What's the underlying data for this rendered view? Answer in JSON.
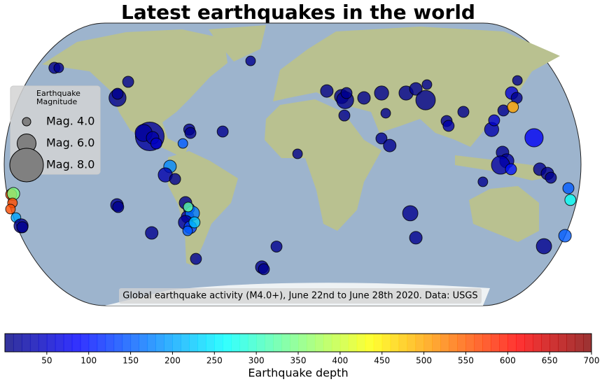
{
  "chart_data": {
    "type": "map",
    "title": "Latest earthquakes in the world",
    "annotation": "Global earthquake activity (M4.0+), June 22nd to June 28th 2020. Data: USGS",
    "series": [
      {
        "lon": [
          -154.0,
          -151.2,
          -105.3,
          -111.1,
          -111.3,
          -89.4,
          -93.3,
          -87.6,
          -85.2,
          -64.8,
          -64.0,
          -43.8,
          -68.6,
          -76.5,
          -79.5,
          -73.4,
          -67.2,
          -65.1,
          -66.2,
          -63.1,
          -67.7,
          -64.8,
          -62.0,
          -66.6,
          -65.6,
          -110.3,
          -109.6,
          -89.5,
          -62.4,
          -20.0,
          -18.7,
          -10.3,
          -27.3,
          21.8,
          31.1,
          33.3,
          34.3,
          45.3,
          56.6,
          72.2,
          78.6,
          84.3,
          85.9,
          58.7,
          32.6,
          55.6,
          60.7,
          3.1,
          74.1,
          78.5,
          96.8,
          97.9,
          107.7,
          124.8,
          126.7,
          133.0,
          139.4,
          142.2,
          139.2,
          144.1,
          151.1,
          131.1,
          133.7,
          129.8,
          136.3,
          118.9,
          154.3,
          159.1,
          161.3,
          172.5,
          174.2,
          160.9,
          173.3,
          -176.2,
          -174.8,
          -175.8,
          -177.4,
          -174.5,
          -171.9,
          -171.2
        ],
        "lat": [
          55.9,
          55.9,
          47.8,
          38.5,
          40.9,
          16.2,
          18.2,
          15.4,
          12.1,
          20.2,
          18.2,
          19.0,
          12.1,
          -1.2,
          -6.1,
          -8.5,
          -22.3,
          -25.5,
          -30.4,
          -28.3,
          -33.6,
          -36.4,
          -33.6,
          -38.5,
          -24.7,
          -23.5,
          -24.7,
          -39.7,
          -54.7,
          -59.5,
          -60.7,
          -47.6,
          59.9,
          42.5,
          39.3,
          37.2,
          41.3,
          38.5,
          41.3,
          41.3,
          43.7,
          37.2,
          46.2,
          29.6,
          28.3,
          15.0,
          10.9,
          6.1,
          -28.3,
          -42.5,
          25.1,
          22.3,
          30.4,
          20.2,
          25.5,
          31.2,
          41.3,
          38.5,
          33.2,
          48.6,
          15.4,
          6.9,
          2.0,
          -0.4,
          -2.8,
          -10.1,
          -2.8,
          -5.3,
          -7.7,
          -13.8,
          -20.6,
          -47.4,
          -41.3,
          -17.4,
          -17.0,
          -22.3,
          -25.9,
          -30.8,
          -35.6,
          -36.4
        ],
        "depth": [
          10,
          10,
          10,
          10,
          10,
          20,
          20,
          30,
          50,
          10,
          10,
          10,
          150,
          180,
          30,
          10,
          10,
          100,
          30,
          170,
          20,
          130,
          220,
          150,
          330,
          10,
          10,
          10,
          10,
          10,
          10,
          10,
          10,
          10,
          10,
          10,
          10,
          10,
          10,
          10,
          10,
          10,
          10,
          10,
          10,
          10,
          10,
          10,
          10,
          10,
          10,
          30,
          10,
          30,
          50,
          10,
          60,
          10,
          500,
          10,
          80,
          10,
          20,
          30,
          100,
          10,
          10,
          10,
          10,
          150,
          270,
          10,
          150,
          560,
          350,
          560,
          560,
          200,
          10,
          10
        ],
        "magnitude": [
          4.6,
          4.3,
          4.6,
          5.7,
          4.6,
          7.4,
          5.7,
          4.9,
          4.6,
          4.6,
          4.6,
          4.6,
          4.3,
          4.9,
          5.2,
          4.6,
          4.9,
          4.6,
          4.9,
          5.2,
          5.2,
          4.9,
          4.6,
          4.3,
          4.3,
          4.9,
          4.6,
          4.9,
          4.6,
          4.9,
          4.6,
          4.6,
          4.3,
          4.9,
          5.2,
          5.7,
          4.6,
          4.9,
          5.2,
          5.2,
          4.9,
          6.1,
          4.3,
          4.3,
          4.6,
          4.6,
          4.9,
          4.3,
          5.4,
          4.9,
          4.6,
          4.6,
          4.6,
          5.2,
          4.6,
          4.6,
          4.9,
          4.6,
          4.6,
          4.3,
          5.9,
          4.9,
          5.2,
          5.9,
          4.6,
          4.3,
          4.9,
          4.9,
          4.6,
          4.6,
          4.6,
          5.4,
          4.9,
          4.6,
          4.9,
          4.3,
          4.3,
          4.3,
          5.2,
          4.6
        ]
      }
    ],
    "legend": {
      "title": [
        "Earthquake",
        "Magnitude"
      ],
      "entries": [
        {
          "label": "Mag. 4.0",
          "value": 4
        },
        {
          "label": "Mag. 6.0",
          "value": 6
        },
        {
          "label": "Mag. 8.0",
          "value": 8
        }
      ],
      "color": "#808080",
      "position": "left"
    },
    "colorbar": {
      "label": "Earthquake depth",
      "colormap": "jet",
      "lim": [
        0,
        700
      ],
      "ticks": [
        50,
        100,
        150,
        200,
        250,
        300,
        350,
        400,
        450,
        500,
        550,
        600,
        650,
        700
      ]
    }
  }
}
